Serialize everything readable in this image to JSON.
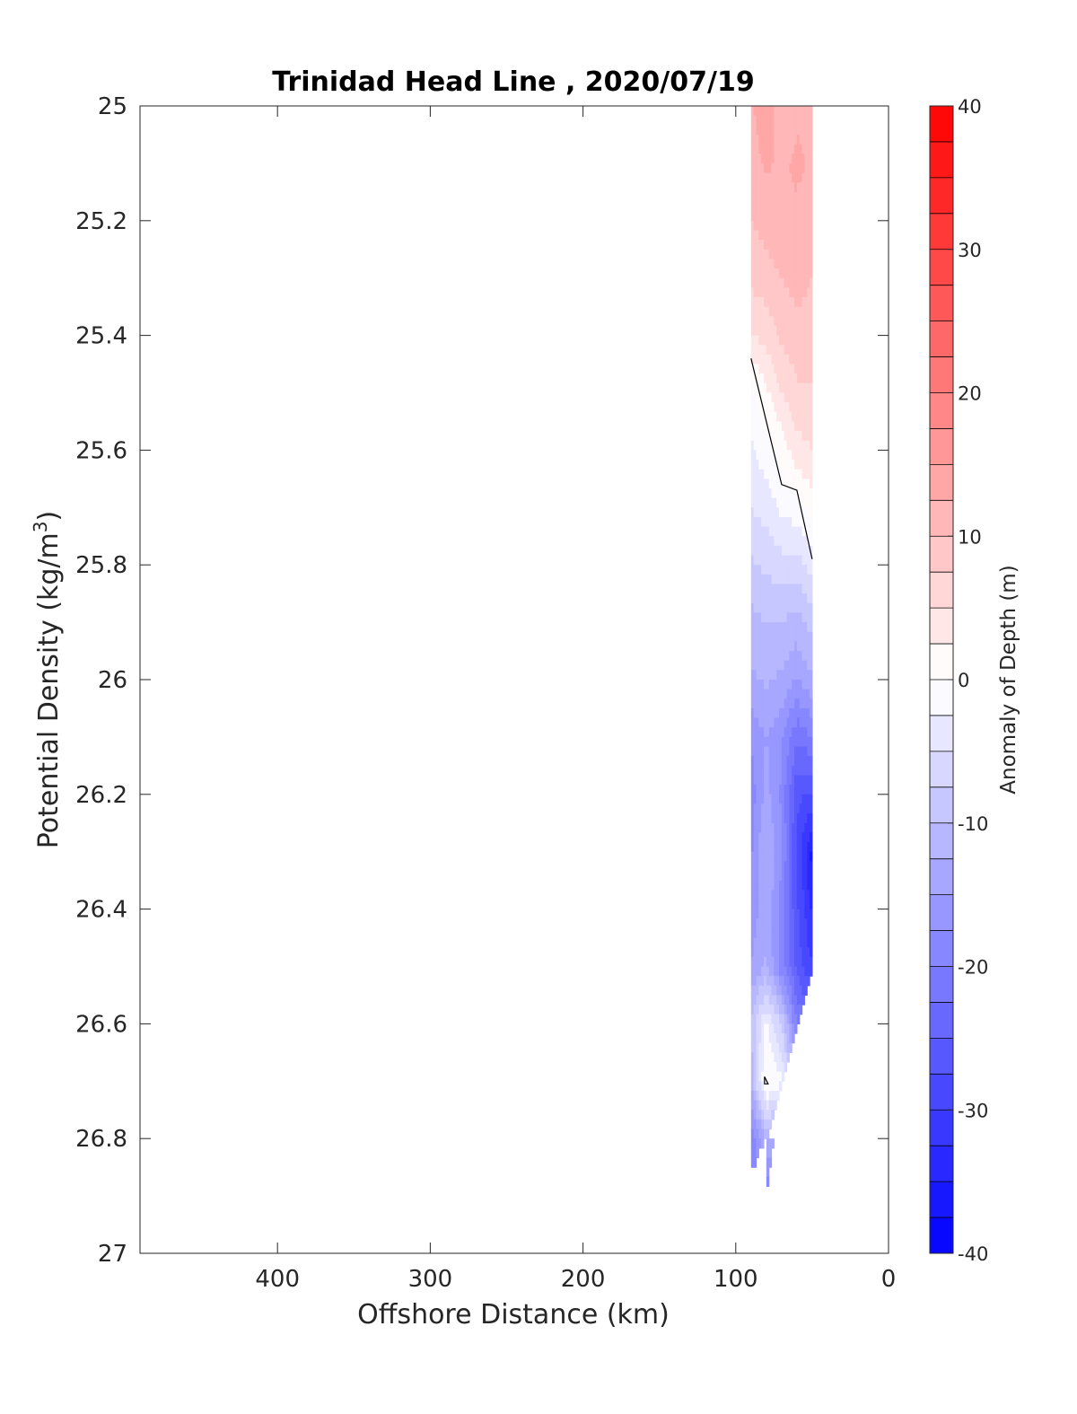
{
  "chart_data": {
    "type": "heatmap",
    "title": "Trinidad Head Line , 2020/07/19",
    "xlabel": "Offshore Distance (km)",
    "ylabel": "Potential Density (kg/m",
    "ylabel_superscript": "3",
    "ylabel_suffix": ")",
    "xlim": [
      490,
      0
    ],
    "ylim": [
      25,
      27
    ],
    "x_reversed": true,
    "y_reversed": true,
    "xticks": [
      400,
      300,
      200,
      100,
      0
    ],
    "yticks": [
      25,
      25.2,
      25.4,
      25.6,
      25.8,
      26,
      26.2,
      26.4,
      26.6,
      26.8,
      27
    ],
    "ytick_labels": [
      "25",
      "25.2",
      "25.4",
      "25.6",
      "25.8",
      "26",
      "26.2",
      "26.4",
      "26.6",
      "26.8",
      "27"
    ],
    "grid": false,
    "colorbar": {
      "label": "Anomaly of Depth (m)",
      "range": [
        -40,
        40
      ],
      "step": 2.5,
      "ticks": [
        40,
        30,
        20,
        10,
        0,
        -10,
        -20,
        -30,
        -40
      ],
      "colors": {
        "positive": "#ff0000",
        "zero": "#ffffff",
        "negative": "#0000ff"
      }
    },
    "field": {
      "x_stations": [
        90,
        80,
        70,
        60,
        50
      ],
      "rows": [
        {
          "density": 25.0,
          "values": [
            12,
            15,
            10,
            12,
            12
          ]
        },
        {
          "density": 25.1,
          "values": [
            11,
            13,
            12,
            13,
            12
          ]
        },
        {
          "density": 25.2,
          "values": [
            10,
            11,
            12,
            12,
            11
          ]
        },
        {
          "density": 25.3,
          "values": [
            8,
            9,
            10,
            11,
            10
          ]
        },
        {
          "density": 25.4,
          "values": [
            5,
            6,
            8,
            9,
            9
          ]
        },
        {
          "density": 25.5,
          "values": [
            -1,
            2,
            5,
            7,
            7
          ]
        },
        {
          "density": 25.6,
          "values": [
            -3,
            -1,
            1,
            4,
            5
          ]
        },
        {
          "density": 25.7,
          "values": [
            -5,
            -4,
            -2,
            -1,
            1
          ]
        },
        {
          "density": 25.8,
          "values": [
            -8,
            -7,
            -6,
            -6,
            -4
          ]
        },
        {
          "density": 25.9,
          "values": [
            -11,
            -10,
            -10,
            -11,
            -9
          ]
        },
        {
          "density": 26.0,
          "values": [
            -13,
            -12,
            -13,
            -15,
            -13
          ]
        },
        {
          "density": 26.1,
          "values": [
            -17,
            -15,
            -17,
            -22,
            -20
          ]
        },
        {
          "density": 26.2,
          "values": [
            -19,
            -14,
            -18,
            -27,
            -28
          ]
        },
        {
          "density": 26.3,
          "values": [
            -18,
            -12,
            -17,
            -28,
            -36
          ]
        },
        {
          "density": 26.4,
          "values": [
            -17,
            -13,
            -19,
            -27,
            -33
          ]
        },
        {
          "density": 26.5,
          "values": [
            -15,
            -12,
            -19,
            -26,
            -30
          ]
        },
        {
          "density": 26.6,
          "values": [
            -10,
            -2,
            -8,
            -20,
            null
          ]
        },
        {
          "density": 26.7,
          "values": [
            -12,
            1,
            -2,
            null,
            null
          ]
        },
        {
          "density": 26.8,
          "values": [
            -20,
            -12,
            null,
            null,
            null
          ]
        },
        {
          "density": 26.9,
          "values": [
            null,
            -20,
            null,
            null,
            null
          ]
        }
      ]
    },
    "zero_contour": [
      {
        "x": 90,
        "y": 25.44
      },
      {
        "x": 70,
        "y": 25.66
      },
      {
        "x": 60,
        "y": 25.67
      },
      {
        "x": 50,
        "y": 25.79
      }
    ],
    "zero_contour_small": {
      "x": 80,
      "y": 26.7
    }
  }
}
